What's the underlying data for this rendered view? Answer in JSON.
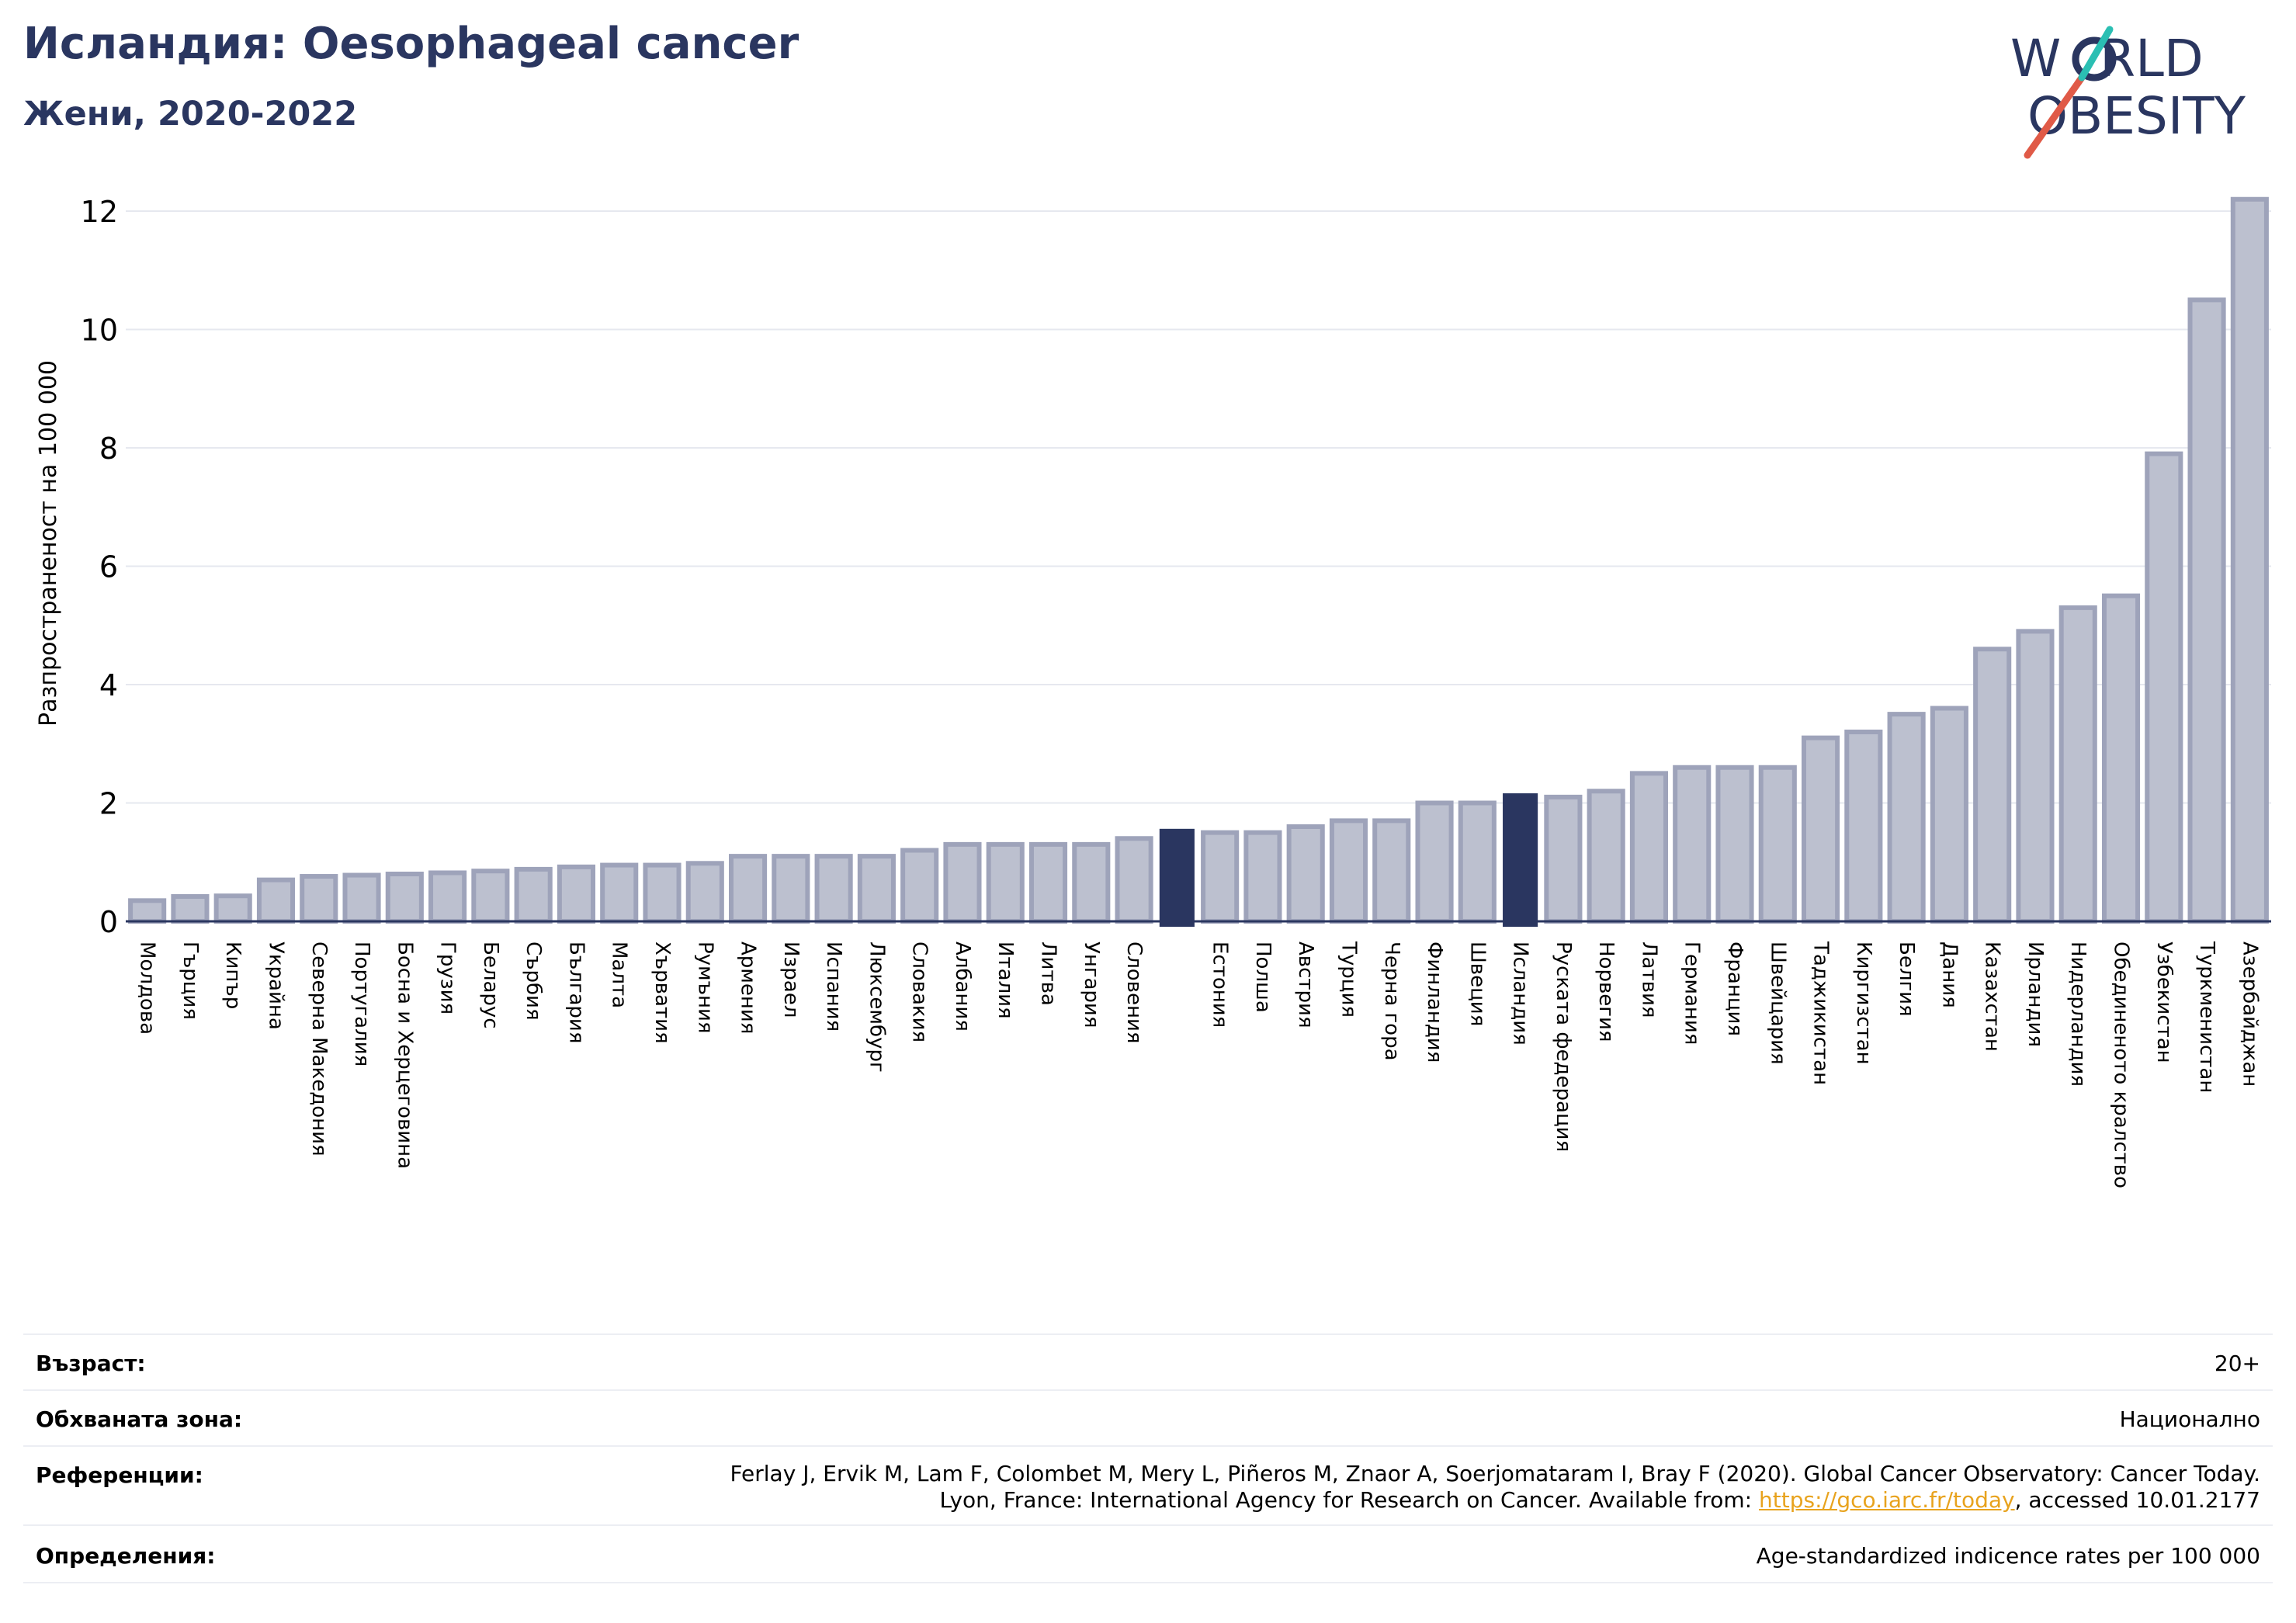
{
  "title": "Исландия: Oesophageal cancer",
  "subtitle": "Жени, 2020-2022",
  "logo": {
    "line1_a": "W",
    "line1_b": "RLD",
    "line2_a": "O",
    "line2_b": "BESITY",
    "accent_color": "#e05a47",
    "teal_color": "#2bbfb3",
    "text_color": "#2a3660"
  },
  "chart_data": {
    "type": "bar",
    "ylabel": "Разпространеност  на 100 000",
    "ylim": [
      0,
      12.5
    ],
    "yticks": [
      0,
      2,
      4,
      6,
      8,
      10,
      12
    ],
    "grid": true,
    "bar_color": "#bcc0cf",
    "bar_edge_color": "#9ea3ba",
    "highlight_color": "#2a3660",
    "categories": [
      "Молдова",
      "Гърция",
      "Кипър",
      "Украйна",
      "Северна Македония",
      "Португалия",
      "Босна и Херцеговина",
      "Грузия",
      "Беларус",
      "Сърбия",
      "България",
      "Малта",
      "Хърватия",
      "Румъния",
      "Армения",
      "Израел",
      "Испания",
      "Люксембург",
      "Словакия",
      "Албания",
      "Италия",
      "Литва",
      "Унгария",
      "Словения",
      "",
      "Естония",
      "Полша",
      "Австрия",
      "Турция",
      "Черна гора",
      "Финландия",
      "Швеция",
      "Исландия",
      "Руската федерация",
      "Норвегия",
      "Латвия",
      "Германия",
      "Франция",
      "Швейцария",
      "Таджикистан",
      "Киргизстан",
      "Белгия",
      "Дания",
      "Казахстан",
      "Ирландия",
      "Нидерландия",
      "Обединеното кралство",
      "Узбекистан",
      "Туркменистан",
      "Азербайджан"
    ],
    "values": [
      0.35,
      0.42,
      0.43,
      0.7,
      0.76,
      0.78,
      0.8,
      0.82,
      0.85,
      0.88,
      0.92,
      0.95,
      0.95,
      0.98,
      1.1,
      1.1,
      1.1,
      1.1,
      1.2,
      1.3,
      1.3,
      1.3,
      1.3,
      1.4,
      1.55,
      1.5,
      1.5,
      1.6,
      1.7,
      1.7,
      2.0,
      2.0,
      2.15,
      2.1,
      2.2,
      2.5,
      2.6,
      2.6,
      2.6,
      3.1,
      3.2,
      3.5,
      3.6,
      4.6,
      4.9,
      5.3,
      5.5,
      7.9,
      10.5,
      12.2
    ],
    "highlight": [
      24,
      32
    ]
  },
  "meta": {
    "age_label": "Възраст:",
    "age_value": "20+",
    "area_label": "Обхваната зона:",
    "area_value": "Национално",
    "ref_label": "Референции:",
    "ref_line1": "Ferlay J, Ervik M, Lam F, Colombet M, Mery L, Piñeros M, Znaor A, Soerjomataram I, Bray F (2020). Global Cancer Observatory: Cancer Today.",
    "ref_line2_pre": "Lyon, France: International Agency for Research on Cancer. Available from: ",
    "ref_link": "https://gco.iarc.fr/today",
    "ref_line2_post": ", accessed 10.01.2177",
    "def_label": "Определения:",
    "def_value": "Age-standardized indicence rates per 100 000"
  }
}
